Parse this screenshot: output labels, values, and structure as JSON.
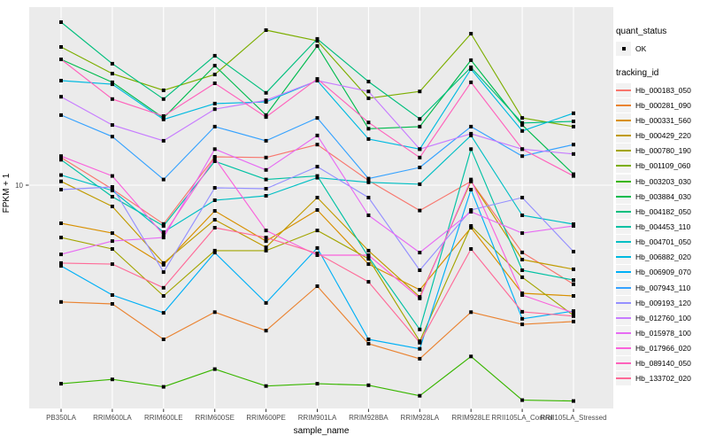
{
  "axes": {
    "y_label": "FPKM + 1",
    "x_label": "sample_name",
    "y_tick_label": "10"
  },
  "legend": {
    "quant_title": "quant_status",
    "quant_items": [
      {
        "label": "OK"
      }
    ],
    "tracking_title": "tracking_id"
  },
  "style_colors": {
    "panel_bg": "#EBEBEB",
    "grid": "#FFFFFF",
    "tick_text": "#4D4D4D",
    "axis_title": "#000000",
    "point": "#000000",
    "legend_key_bg": "#F2F2F2"
  },
  "chart_data": {
    "type": "line",
    "title": "",
    "xlabel": "sample_name",
    "ylabel": "FPKM + 1",
    "yscale": "log10",
    "y_ticks": [
      10
    ],
    "ylim": [
      1,
      63
    ],
    "grid": true,
    "legend_position": "right",
    "point_shape": "filled-square",
    "quant_status": "OK",
    "categories": [
      "PB350LA",
      "RRIM600LA",
      "RRIM600LE",
      "RRIM600SE",
      "RRIM600PE",
      "RRIM901LA",
      "RRIM928BA",
      "RRIM928LA",
      "RRIM928LE",
      "RRII105LA_Control",
      "RRII105LA_Stressed"
    ],
    "series": [
      {
        "name": "Hb_000183_050",
        "color": "#F8766D",
        "values": [
          13.3,
          9.6,
          6.7,
          13.4,
          13.3,
          15.2,
          10.5,
          7.7,
          10.4,
          5.0,
          3.6
        ]
      },
      {
        "name": "Hb_000281_090",
        "color": "#EA8331",
        "values": [
          3.0,
          2.94,
          2.04,
          2.7,
          2.23,
          3.53,
          1.95,
          1.67,
          2.7,
          2.38,
          2.45
        ]
      },
      {
        "name": "Hb_000331_560",
        "color": "#D89000",
        "values": [
          6.75,
          6.1,
          4.4,
          7.67,
          5.62,
          7.74,
          4.43,
          3.4,
          6.45,
          3.28,
          3.19
        ]
      },
      {
        "name": "Hb_000429_220",
        "color": "#C09B00",
        "values": [
          10.4,
          8.03,
          4.48,
          7.0,
          5.27,
          8.8,
          5.09,
          3.16,
          10.4,
          4.64,
          4.2
        ]
      },
      {
        "name": "Hb_000780_190",
        "color": "#A3A500",
        "values": [
          5.83,
          5.18,
          3.19,
          5.09,
          5.09,
          6.27,
          4.68,
          2.0,
          6.57,
          3.87,
          2.61
        ]
      },
      {
        "name": "Hb_001109_060",
        "color": "#7CAE00",
        "values": [
          41.6,
          31.6,
          26.6,
          31.3,
          49.5,
          44.3,
          24.5,
          26.3,
          47.7,
          20.0,
          18.3
        ]
      },
      {
        "name": "Hb_003203_030",
        "color": "#39B600",
        "values": [
          1.29,
          1.35,
          1.25,
          1.5,
          1.26,
          1.29,
          1.27,
          1.14,
          1.71,
          1.09,
          1.08
        ]
      },
      {
        "name": "Hb_003884_030",
        "color": "#00BB4E",
        "values": [
          36.6,
          28.9,
          20.0,
          34.3,
          20.6,
          42.0,
          17.9,
          18.3,
          36.3,
          18.6,
          11.2
        ]
      },
      {
        "name": "Hb_004182_050",
        "color": "#00BF7D",
        "values": [
          53.7,
          35.0,
          24.3,
          38.0,
          25.9,
          45.2,
          29.1,
          19.8,
          33.7,
          19.0,
          19.3
        ]
      },
      {
        "name": "Hb_004453_110",
        "color": "#00C1A3",
        "values": [
          13.0,
          8.88,
          6.57,
          12.8,
          10.6,
          11.0,
          4.77,
          2.26,
          14.5,
          4.16,
          3.76
        ]
      },
      {
        "name": "Hb_004701_050",
        "color": "#00BFC4",
        "values": [
          11.1,
          9.47,
          6.16,
          8.56,
          8.96,
          10.8,
          10.3,
          10.1,
          16.7,
          7.33,
          6.69
        ]
      },
      {
        "name": "Hb_006882_020",
        "color": "#00BAE0",
        "values": [
          29.4,
          28.3,
          19.7,
          23.2,
          23.6,
          29.4,
          16.1,
          14.5,
          33.1,
          17.5,
          21.0
        ]
      },
      {
        "name": "Hb_006909_070",
        "color": "#00B0F6",
        "values": [
          4.35,
          3.22,
          2.68,
          4.99,
          2.97,
          5.23,
          2.04,
          1.85,
          9.55,
          2.52,
          2.73
        ]
      },
      {
        "name": "Hb_007943_110",
        "color": "#35A2FF",
        "values": [
          20.6,
          16.5,
          10.6,
          18.3,
          15.8,
          20.0,
          10.7,
          12.0,
          18.3,
          13.5,
          15.2
        ]
      },
      {
        "name": "Hb_009193_120",
        "color": "#9590FF",
        "values": [
          9.55,
          9.82,
          4.08,
          9.73,
          9.64,
          12.1,
          8.8,
          4.16,
          7.74,
          8.8,
          5.04
        ]
      },
      {
        "name": "Hb_012760_100",
        "color": "#C77CFF",
        "values": [
          24.9,
          18.6,
          15.8,
          21.9,
          24.0,
          29.4,
          26.3,
          14.5,
          17.0,
          14.5,
          13.8
        ]
      },
      {
        "name": "Hb_015978_100",
        "color": "#E76BF3",
        "values": [
          4.9,
          5.62,
          5.83,
          14.5,
          11.7,
          16.7,
          7.33,
          4.99,
          7.6,
          6.1,
          6.57
        ]
      },
      {
        "name": "Hb_017966_020",
        "color": "#FA62DB",
        "values": [
          13.5,
          11.0,
          5.99,
          13.2,
          6.27,
          4.86,
          4.86,
          3.11,
          10.6,
          3.22,
          2.68
        ]
      },
      {
        "name": "Hb_089140_050",
        "color": "#FF62BC",
        "values": [
          36.6,
          24.3,
          20.4,
          28.6,
          20.2,
          29.9,
          19.1,
          13.3,
          28.9,
          14.5,
          11.0
        ]
      },
      {
        "name": "Hb_133702_020",
        "color": "#FF6A98",
        "values": [
          4.48,
          4.43,
          3.47,
          6.45,
          5.83,
          4.95,
          3.69,
          1.97,
          5.18,
          2.71,
          2.59
        ]
      }
    ]
  }
}
